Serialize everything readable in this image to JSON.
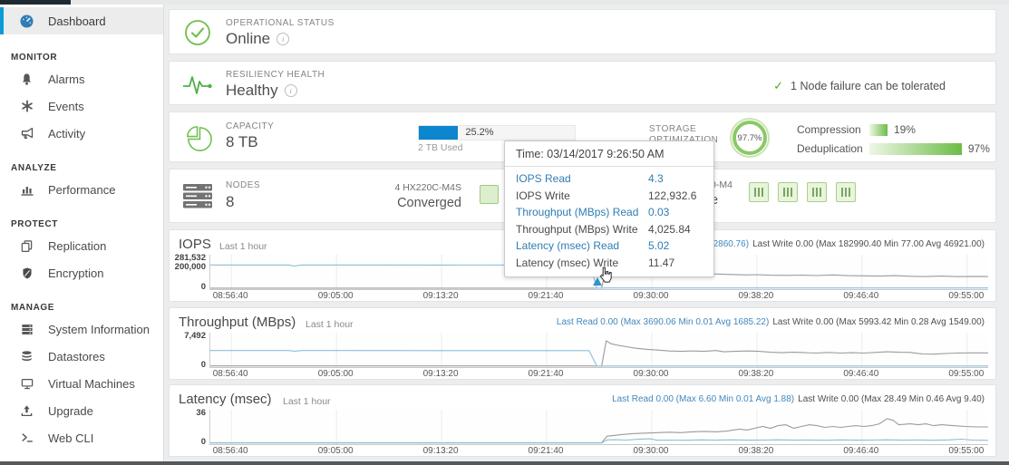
{
  "colors": {
    "accent_blue": "#0b9bd7",
    "bar_blue": "#0c86ce",
    "green": "#6cbc47",
    "read_line": "#8bbdd9",
    "write_line": "#9b9b9b",
    "link_blue": "#2f7db3"
  },
  "sidebar": {
    "dashboard": "Dashboard",
    "sections": [
      {
        "header": "MONITOR",
        "items": [
          {
            "label": "Alarms"
          },
          {
            "label": "Events"
          },
          {
            "label": "Activity"
          }
        ]
      },
      {
        "header": "ANALYZE",
        "items": [
          {
            "label": "Performance"
          }
        ]
      },
      {
        "header": "PROTECT",
        "items": [
          {
            "label": "Replication"
          },
          {
            "label": "Encryption"
          }
        ]
      },
      {
        "header": "MANAGE",
        "items": [
          {
            "label": "System Information"
          },
          {
            "label": "Datastores"
          },
          {
            "label": "Virtual Machines"
          },
          {
            "label": "Upgrade"
          },
          {
            "label": "Web CLI"
          }
        ]
      }
    ]
  },
  "cards": {
    "operational": {
      "label": "OPERATIONAL STATUS",
      "value": "Online"
    },
    "resiliency": {
      "label": "RESILIENCY HEALTH",
      "value": "Healthy",
      "check": "✓",
      "note": "1 Node failure can be tolerated"
    },
    "capacity": {
      "label": "CAPACITY",
      "value": "8 TB",
      "used_pct": "25.2%",
      "used_pct_value": 25.2,
      "used_label": "2 TB Used",
      "storage_label_line1": "STORAGE",
      "storage_label_line2": "OPTIMIZATION",
      "optimization_pct": "97.7%",
      "compression_label": "Compression",
      "compression_pct": "19%",
      "compression_value": 19,
      "dedup_label": "Deduplication",
      "dedup_pct": "97%",
      "dedup_value": 97
    },
    "nodes": {
      "label": "NODES",
      "value": "8",
      "group1_line1": "4 HX220C-M4S",
      "group1_line2": "Converged",
      "fragment_line1": "0-M4",
      "fragment_line2": "e"
    }
  },
  "tooltip": {
    "time": "Time: 03/14/2017 9:26:50 AM",
    "rows": [
      {
        "label": "IOPS Read",
        "value": "4.3",
        "highlight": true
      },
      {
        "label": "IOPS Write",
        "value": "122,932.6",
        "highlight": false
      },
      {
        "label": "Throughput (MBps) Read",
        "value": "0.03",
        "highlight": true
      },
      {
        "label": "Throughput (MBps) Write",
        "value": "4,025.84",
        "highlight": false
      },
      {
        "label": "Latency (msec) Read",
        "value": "5.02",
        "highlight": true
      },
      {
        "label": "Latency (msec) Write",
        "value": "11.47",
        "highlight": false
      }
    ]
  },
  "chart_data": [
    {
      "type": "line",
      "title": "IOPS",
      "subtitle": "Last 1 hour",
      "ylim": [
        0,
        281532
      ],
      "ytick_top": [
        "281,532",
        "200,000"
      ],
      "ytick_bottom": "0",
      "xtick_labels": [
        "08:56:40",
        "09:05:00",
        "09:13:20",
        "09:21:40",
        "09:30:00",
        "09:38:20",
        "09:46:40",
        "09:55:00"
      ],
      "grid_x": [
        0.027,
        0.1622,
        0.2973,
        0.4324,
        0.5676,
        0.7027,
        0.8378,
        0.973
      ],
      "legend_position": "none",
      "grid": "vertical",
      "stats_read": "Min 2.60 Avg 102860.76)",
      "stats_write": "Last Write 0.00 (Max 182990.40 Min 77.00 Avg 46921.00)",
      "series": [
        {
          "name": "write",
          "color": "#9b9b9b",
          "points": [
            [
              0,
              1200
            ],
            [
              0.45,
              1200
            ],
            [
              0.49,
              800
            ],
            [
              0.503,
              0
            ],
            [
              0.509,
              183000
            ],
            [
              0.515,
              166000
            ],
            [
              0.525,
              158000
            ],
            [
              0.535,
              150000
            ],
            [
              0.545,
              152000
            ],
            [
              0.555,
              143000
            ],
            [
              0.57,
              140000
            ],
            [
              0.59,
              138000
            ],
            [
              0.61,
              132000
            ],
            [
              0.63,
              128000
            ],
            [
              0.65,
              126000
            ],
            [
              0.67,
              122000
            ],
            [
              0.69,
              118000
            ],
            [
              0.7,
              121000
            ],
            [
              0.72,
              116000
            ],
            [
              0.74,
              114000
            ],
            [
              0.76,
              117000
            ],
            [
              0.78,
              113000
            ],
            [
              0.8,
              118000
            ],
            [
              0.82,
              112000
            ],
            [
              0.84,
              110000
            ],
            [
              0.86,
              108000
            ],
            [
              0.88,
              112000
            ],
            [
              0.9,
              106000
            ],
            [
              0.92,
              104000
            ],
            [
              0.94,
              108000
            ],
            [
              0.96,
              103000
            ],
            [
              0.98,
              105000
            ],
            [
              1,
              104000
            ]
          ]
        },
        {
          "name": "read",
          "color": "#8bbdd9",
          "points": [
            [
              0,
              207000
            ],
            [
              0.1,
              207000
            ],
            [
              0.108,
              197000
            ],
            [
              0.118,
              207000
            ],
            [
              0.3,
              206000
            ],
            [
              0.45,
              206500
            ],
            [
              0.487,
              206500
            ],
            [
              0.492,
              120000
            ],
            [
              0.497,
              0
            ],
            [
              0.51,
              2500
            ],
            [
              0.7,
              2500
            ],
            [
              1,
              2500
            ]
          ]
        }
      ]
    },
    {
      "type": "line",
      "title": "Throughput (MBps)",
      "subtitle": "Last 1 hour",
      "ylim": [
        0,
        7492
      ],
      "ytick_top": [
        "7,492"
      ],
      "ytick_bottom": "0",
      "xtick_labels": [
        "08:56:40",
        "09:05:00",
        "09:13:20",
        "09:21:40",
        "09:30:00",
        "09:38:20",
        "09:46:40",
        "09:55:00"
      ],
      "grid_x": [
        0.027,
        0.1622,
        0.2973,
        0.4324,
        0.5676,
        0.7027,
        0.8378,
        0.973
      ],
      "legend_position": "none",
      "grid": "vertical",
      "stats_read": "Last Read 0.00 (Max 3690.06 Min 0.01 Avg 1685.22)",
      "stats_write": "Last Write 0.00 (Max 5993.42 Min 0.28 Avg 1549.00)",
      "series": [
        {
          "name": "write",
          "color": "#9b9b9b",
          "points": [
            [
              0,
              60
            ],
            [
              0.49,
              60
            ],
            [
              0.503,
              0
            ],
            [
              0.509,
              5990
            ],
            [
              0.515,
              5300
            ],
            [
              0.525,
              4900
            ],
            [
              0.535,
              4600
            ],
            [
              0.545,
              4300
            ],
            [
              0.56,
              4000
            ],
            [
              0.575,
              3800
            ],
            [
              0.59,
              3600
            ],
            [
              0.605,
              3500
            ],
            [
              0.62,
              3600
            ],
            [
              0.635,
              3500
            ],
            [
              0.65,
              3700
            ],
            [
              0.66,
              3400
            ],
            [
              0.675,
              3500
            ],
            [
              0.69,
              3600
            ],
            [
              0.705,
              3500
            ],
            [
              0.72,
              3300
            ],
            [
              0.735,
              3200
            ],
            [
              0.75,
              3300
            ],
            [
              0.765,
              3200
            ],
            [
              0.78,
              3100
            ],
            [
              0.795,
              3250
            ],
            [
              0.81,
              3100
            ],
            [
              0.825,
              3200
            ],
            [
              0.84,
              3100
            ],
            [
              0.855,
              3250
            ],
            [
              0.87,
              3400
            ],
            [
              0.885,
              3300
            ],
            [
              0.9,
              3250
            ],
            [
              0.915,
              2900
            ],
            [
              0.93,
              2850
            ],
            [
              0.945,
              3000
            ],
            [
              0.96,
              3100
            ],
            [
              0.975,
              3150
            ],
            [
              1,
              3150
            ]
          ]
        },
        {
          "name": "read",
          "color": "#8bbdd9",
          "points": [
            [
              0,
              3700
            ],
            [
              0.1,
              3700
            ],
            [
              0.108,
              3550
            ],
            [
              0.118,
              3700
            ],
            [
              0.3,
              3690
            ],
            [
              0.487,
              3690
            ],
            [
              0.497,
              0
            ],
            [
              0.51,
              40
            ],
            [
              1,
              40
            ]
          ]
        }
      ]
    },
    {
      "type": "line",
      "title": "Latency (msec)",
      "subtitle": "Last 1 hour",
      "ylim": [
        0,
        36
      ],
      "ytick_top": [
        "36"
      ],
      "ytick_bottom": "0",
      "xtick_labels": [
        "08:56:40",
        "09:05:00",
        "09:13:20",
        "09:21:40",
        "09:30:00",
        "09:38:20",
        "09:46:40",
        "09:55:00"
      ],
      "grid_x": [
        0.027,
        0.1622,
        0.2973,
        0.4324,
        0.5676,
        0.7027,
        0.8378,
        0.973
      ],
      "legend_position": "none",
      "grid": "vertical",
      "stats_read": "Last Read 0.00 (Max 6.60 Min 0.01 Avg 1.88)",
      "stats_write": "Last Write 0.00 (Max 28.49 Min 0.46 Avg 9.40)",
      "series": [
        {
          "name": "write",
          "color": "#9b9b9b",
          "points": [
            [
              0,
              0.5
            ],
            [
              0.49,
              0.5
            ],
            [
              0.503,
              0.5
            ],
            [
              0.51,
              8
            ],
            [
              0.52,
              9
            ],
            [
              0.53,
              10
            ],
            [
              0.545,
              11
            ],
            [
              0.56,
              11.5
            ],
            [
              0.575,
              12
            ],
            [
              0.59,
              12.5
            ],
            [
              0.605,
              12
            ],
            [
              0.62,
              13
            ],
            [
              0.635,
              13.5
            ],
            [
              0.65,
              13
            ],
            [
              0.665,
              14
            ],
            [
              0.68,
              16
            ],
            [
              0.69,
              15
            ],
            [
              0.7,
              17
            ],
            [
              0.71,
              19
            ],
            [
              0.72,
              17
            ],
            [
              0.73,
              20
            ],
            [
              0.74,
              21
            ],
            [
              0.75,
              17
            ],
            [
              0.76,
              19
            ],
            [
              0.77,
              21
            ],
            [
              0.78,
              20
            ],
            [
              0.79,
              18
            ],
            [
              0.8,
              19
            ],
            [
              0.81,
              18
            ],
            [
              0.82,
              19
            ],
            [
              0.83,
              20
            ],
            [
              0.84,
              19
            ],
            [
              0.85,
              20
            ],
            [
              0.86,
              22
            ],
            [
              0.87,
              28
            ],
            [
              0.878,
              26
            ],
            [
              0.885,
              21
            ],
            [
              0.9,
              22
            ],
            [
              0.91,
              21
            ],
            [
              0.92,
              22
            ],
            [
              0.93,
              20
            ],
            [
              0.94,
              21
            ],
            [
              0.955,
              20
            ],
            [
              0.97,
              19
            ],
            [
              0.985,
              18.5
            ],
            [
              1,
              18.5
            ]
          ]
        },
        {
          "name": "read",
          "color": "#8bbdd9",
          "points": [
            [
              0,
              0.3
            ],
            [
              0.49,
              0.3
            ],
            [
              0.503,
              0.3
            ],
            [
              0.51,
              3.8
            ],
            [
              0.52,
              4.0
            ],
            [
              0.535,
              3.6
            ],
            [
              0.55,
              4.5
            ],
            [
              0.565,
              5.0
            ],
            [
              0.575,
              3.4
            ],
            [
              0.59,
              3.6
            ],
            [
              0.61,
              3.4
            ],
            [
              0.63,
              3.8
            ],
            [
              0.65,
              3.5
            ],
            [
              0.67,
              3.9
            ],
            [
              0.69,
              3.5
            ],
            [
              0.71,
              3.6
            ],
            [
              0.73,
              3.9
            ],
            [
              0.75,
              3.5
            ],
            [
              0.77,
              3.7
            ],
            [
              0.79,
              3.4
            ],
            [
              0.81,
              3.8
            ],
            [
              0.83,
              3.5
            ],
            [
              0.85,
              3.6
            ],
            [
              0.87,
              3.9
            ],
            [
              0.89,
              3.5
            ],
            [
              0.91,
              3.7
            ],
            [
              0.93,
              3.4
            ],
            [
              0.95,
              3.8
            ],
            [
              0.965,
              4.6
            ],
            [
              0.98,
              3.6
            ],
            [
              1,
              3.3
            ]
          ]
        }
      ]
    }
  ]
}
